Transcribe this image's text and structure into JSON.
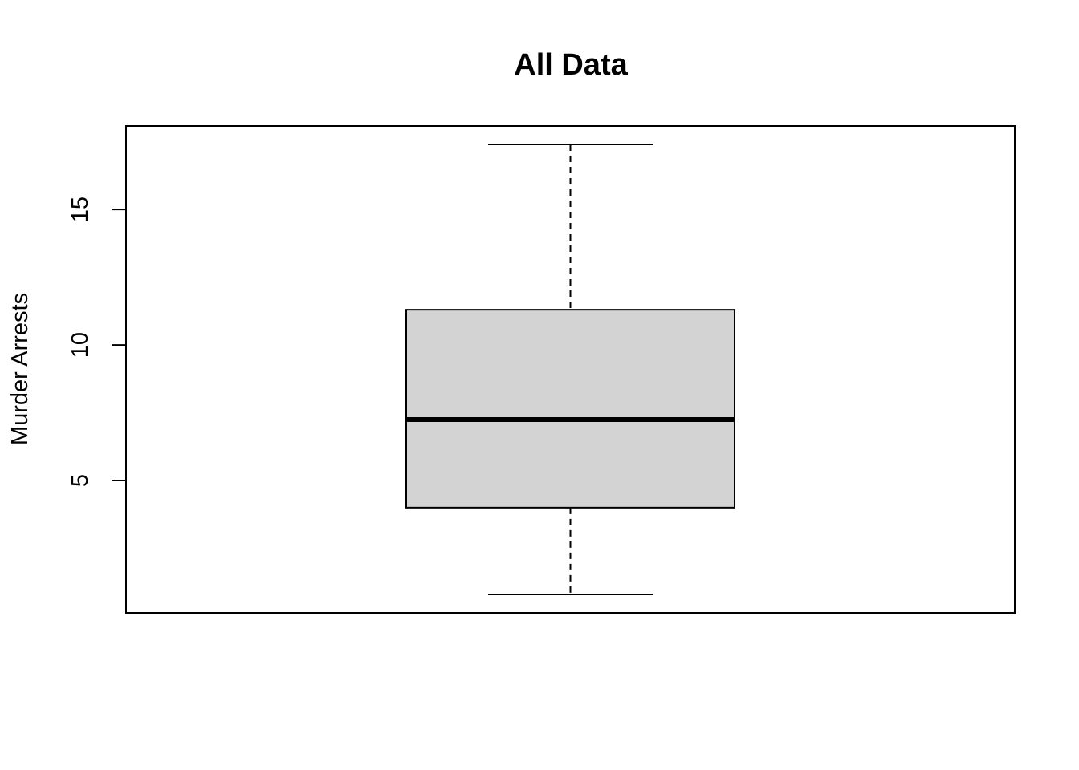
{
  "chart_data": {
    "type": "boxplot",
    "title": "All Data",
    "xlabel": "",
    "ylabel": "Murder Arrests",
    "yticks": [
      5,
      10,
      15
    ],
    "ylim": [
      0.8,
      17.4
    ],
    "series": [
      {
        "whisker_low": 0.8,
        "q1": 4.0,
        "median": 7.25,
        "q3": 11.3,
        "whisker_high": 17.4
      }
    ],
    "grid": false,
    "legend": "none",
    "colors": {
      "box_fill": "#d3d3d3",
      "stroke": "#000000"
    }
  }
}
